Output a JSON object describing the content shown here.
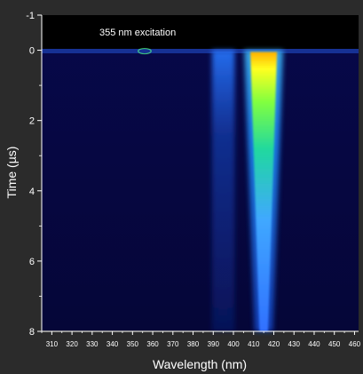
{
  "chart_data": {
    "type": "heatmap",
    "title": "",
    "annotation": "355 nm excitation",
    "xlabel": "Wavelength (nm)",
    "ylabel": "Time (µs)",
    "xlim": [
      305,
      462
    ],
    "ylim": [
      -1,
      8
    ],
    "y_inverted": true,
    "x_ticks": [
      310,
      320,
      330,
      340,
      350,
      360,
      370,
      380,
      390,
      400,
      410,
      420,
      430,
      440,
      450,
      460
    ],
    "y_ticks": [
      -1,
      0,
      2,
      4,
      6,
      8
    ],
    "grid": false,
    "colormap": "jet",
    "background_color": "#2b2b2b",
    "signal_bands": [
      {
        "center_nm": 356,
        "width_nm": 2,
        "time_start_us": -0.1,
        "time_end_us": 0.1,
        "intensity": 0.45
      },
      {
        "center_nm": 395,
        "width_nm": 4,
        "time_start_us": 0.0,
        "time_end_us": 8.0,
        "intensity": 0.35
      },
      {
        "center_nm": 415,
        "width_nm": 3,
        "time_start_us": 0.0,
        "time_end_us": 8.0,
        "intensity": 1.0
      }
    ]
  }
}
